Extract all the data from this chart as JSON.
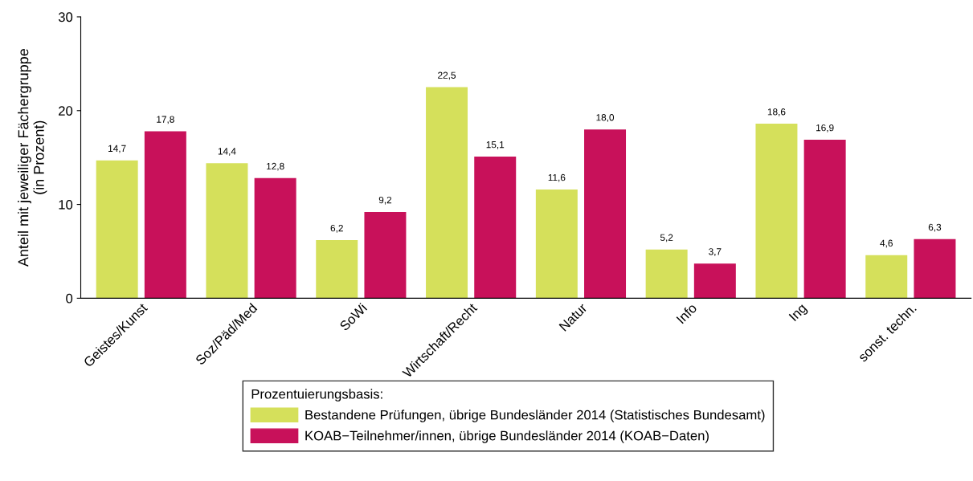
{
  "chart_data": {
    "type": "bar",
    "ylabel": "Anteil mit jeweiliger Fächergruppe\n(in Prozent)",
    "legend_title": "Prozentuierungsbasis:",
    "categories": [
      "Geistes/Kunst",
      "Soz/Päd/Med",
      "SoWi",
      "Wirtschaft/Recht",
      "Natur",
      "Info",
      "Ing",
      "sonst. techn."
    ],
    "series": [
      {
        "name": "Bestandene Prüfungen, übrige Bundesländer 2014 (Statistisches Bundesamt)",
        "color": "#d5e05b",
        "values": [
          14.7,
          14.4,
          6.2,
          22.5,
          11.6,
          5.2,
          18.6,
          4.6
        ],
        "value_labels": [
          "14,7",
          "14,4",
          "6,2",
          "22,5",
          "11,6",
          "5,2",
          "18,6",
          "4,6"
        ]
      },
      {
        "name": "KOAB−Teilnehmer/innen, übrige Bundesländer 2014 (KOAB−Daten)",
        "color": "#c8115a",
        "values": [
          17.8,
          12.8,
          9.2,
          15.1,
          18.0,
          3.7,
          16.9,
          6.3
        ],
        "value_labels": [
          "17,8",
          "12,8",
          "9,2",
          "15,1",
          "18,0",
          "3,7",
          "16,9",
          "6,3"
        ]
      }
    ],
    "ylim": [
      0,
      30
    ],
    "yticks": [
      0,
      10,
      20,
      30
    ],
    "grid": false,
    "legend": "bottom"
  }
}
